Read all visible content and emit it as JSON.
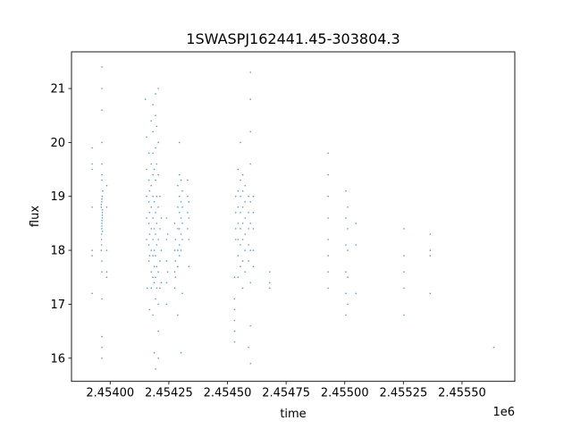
{
  "chart_data": {
    "type": "scatter",
    "title": "1SWASPJ162441.45-303804.3",
    "xlabel": "time",
    "ylabel": "flux",
    "x_offset_label": "1e6",
    "xlim": [
      2453835,
      2455725
    ],
    "ylim": [
      15.57,
      21.68
    ],
    "xticks": [
      2454000,
      2454250,
      2454500,
      2454750,
      2455000,
      2455250,
      2455500
    ],
    "xtick_labels": [
      "2.45400",
      "2.45425",
      "2.45450",
      "2.45475",
      "2.45500",
      "2.45525",
      "2.45550"
    ],
    "yticks": [
      16,
      17,
      18,
      19,
      20,
      21
    ],
    "ytick_labels": [
      "16",
      "17",
      "18",
      "19",
      "20",
      "21"
    ],
    "grid": false,
    "color": "#1f77b4",
    "points": [
      [
        2453923,
        19.9
      ],
      [
        2453923,
        19.6
      ],
      [
        2453923,
        19.5
      ],
      [
        2453923,
        18.0
      ],
      [
        2453923,
        17.2
      ],
      [
        2453923,
        18.8
      ],
      [
        2453923,
        17.9
      ],
      [
        2453962,
        18.0
      ],
      [
        2453963,
        18.2
      ],
      [
        2453964,
        18.4
      ],
      [
        2453965,
        18.5
      ],
      [
        2453966,
        18.6
      ],
      [
        2453967,
        18.7
      ],
      [
        2453962,
        18.8
      ],
      [
        2453964,
        18.9
      ],
      [
        2453966,
        19.0
      ],
      [
        2453968,
        19.1
      ],
      [
        2453963,
        18.3
      ],
      [
        2453965,
        18.55
      ],
      [
        2453967,
        18.75
      ],
      [
        2453962,
        18.85
      ],
      [
        2453964,
        18.45
      ],
      [
        2453966,
        18.65
      ],
      [
        2453965,
        18.95
      ],
      [
        2453963,
        18.1
      ],
      [
        2453967,
        18.35
      ],
      [
        2453965,
        17.6
      ],
      [
        2453965,
        17.1
      ],
      [
        2453965,
        19.6
      ],
      [
        2453965,
        20.0
      ],
      [
        2453965,
        20.6
      ],
      [
        2453965,
        21.0
      ],
      [
        2453965,
        21.4
      ],
      [
        2453965,
        16.4
      ],
      [
        2453965,
        16.2
      ],
      [
        2453965,
        16.0
      ],
      [
        2453965,
        17.8
      ],
      [
        2453965,
        19.4
      ],
      [
        2453965,
        19.3
      ],
      [
        2453985,
        19.2
      ],
      [
        2453985,
        18.8
      ],
      [
        2453985,
        18.0
      ],
      [
        2453985,
        17.6
      ],
      [
        2453985,
        17.5
      ],
      [
        2454150,
        20.8
      ],
      [
        2454155,
        20.1
      ],
      [
        2454155,
        19.5
      ],
      [
        2454155,
        19.0
      ],
      [
        2454155,
        18.6
      ],
      [
        2454155,
        18.2
      ],
      [
        2454158,
        17.3
      ],
      [
        2454165,
        19.8
      ],
      [
        2454165,
        19.3
      ],
      [
        2454165,
        18.9
      ],
      [
        2454165,
        18.5
      ],
      [
        2454165,
        18.1
      ],
      [
        2454165,
        17.8
      ],
      [
        2454168,
        19.1
      ],
      [
        2454168,
        18.7
      ],
      [
        2454168,
        18.3
      ],
      [
        2454168,
        17.9
      ],
      [
        2454168,
        16.9
      ],
      [
        2454175,
        20.4
      ],
      [
        2454175,
        19.6
      ],
      [
        2454175,
        19.2
      ],
      [
        2454175,
        18.8
      ],
      [
        2454175,
        18.4
      ],
      [
        2454175,
        18.0
      ],
      [
        2454175,
        17.6
      ],
      [
        2454175,
        17.3
      ],
      [
        2454182,
        20.7
      ],
      [
        2454182,
        20.2
      ],
      [
        2454182,
        19.8
      ],
      [
        2454182,
        19.4
      ],
      [
        2454182,
        19.0
      ],
      [
        2454182,
        18.6
      ],
      [
        2454182,
        18.2
      ],
      [
        2454182,
        17.9
      ],
      [
        2454182,
        17.5
      ],
      [
        2454182,
        16.8
      ],
      [
        2454188,
        19.5
      ],
      [
        2454188,
        18.9
      ],
      [
        2454188,
        18.4
      ],
      [
        2454188,
        18.0
      ],
      [
        2454188,
        17.7
      ],
      [
        2454188,
        17.4
      ],
      [
        2454188,
        16.1
      ],
      [
        2454193,
        20.9
      ],
      [
        2454193,
        20.5
      ],
      [
        2454193,
        19.9
      ],
      [
        2454193,
        19.3
      ],
      [
        2454193,
        18.7
      ],
      [
        2454193,
        18.3
      ],
      [
        2454193,
        17.9
      ],
      [
        2454193,
        17.5
      ],
      [
        2454193,
        17.1
      ],
      [
        2454193,
        15.8
      ],
      [
        2454198,
        20.3
      ],
      [
        2454198,
        19.6
      ],
      [
        2454198,
        19.0
      ],
      [
        2454198,
        18.5
      ],
      [
        2454198,
        18.1
      ],
      [
        2454198,
        17.7
      ],
      [
        2454198,
        17.3
      ],
      [
        2454205,
        21.0
      ],
      [
        2454205,
        20.0
      ],
      [
        2454205,
        19.4
      ],
      [
        2454205,
        18.8
      ],
      [
        2454205,
        18.2
      ],
      [
        2454205,
        17.6
      ],
      [
        2454205,
        17.0
      ],
      [
        2454205,
        16.5
      ],
      [
        2454205,
        16.0
      ],
      [
        2454212,
        19.0
      ],
      [
        2454212,
        18.4
      ],
      [
        2454212,
        17.8
      ],
      [
        2454212,
        17.3
      ],
      [
        2454218,
        18.6
      ],
      [
        2454218,
        18.0
      ],
      [
        2454218,
        17.4
      ],
      [
        2454240,
        18.6
      ],
      [
        2454240,
        18.2
      ],
      [
        2454240,
        17.8
      ],
      [
        2454240,
        17.4
      ],
      [
        2454240,
        17.0
      ],
      [
        2454245,
        18.3
      ],
      [
        2454245,
        17.6
      ],
      [
        2454275,
        18.5
      ],
      [
        2454275,
        18.0
      ],
      [
        2454275,
        17.6
      ],
      [
        2454275,
        17.3
      ],
      [
        2454278,
        18.2
      ],
      [
        2454278,
        17.8
      ],
      [
        2454278,
        17.5
      ],
      [
        2454288,
        19.2
      ],
      [
        2454288,
        18.8
      ],
      [
        2454288,
        18.4
      ],
      [
        2454288,
        18.0
      ],
      [
        2454288,
        17.7
      ],
      [
        2454288,
        16.8
      ],
      [
        2454295,
        19.4
      ],
      [
        2454295,
        19.0
      ],
      [
        2454295,
        18.7
      ],
      [
        2454295,
        18.4
      ],
      [
        2454295,
        18.1
      ],
      [
        2454295,
        17.9
      ],
      [
        2454295,
        20.0
      ],
      [
        2454302,
        19.3
      ],
      [
        2454302,
        18.9
      ],
      [
        2454302,
        18.6
      ],
      [
        2454302,
        18.3
      ],
      [
        2454302,
        18.0
      ],
      [
        2454302,
        16.1
      ],
      [
        2454308,
        19.1
      ],
      [
        2454308,
        18.8
      ],
      [
        2454308,
        18.5
      ],
      [
        2454308,
        18.2
      ],
      [
        2454308,
        17.2
      ],
      [
        2454330,
        19.3
      ],
      [
        2454330,
        19.0
      ],
      [
        2454330,
        18.7
      ],
      [
        2454330,
        18.4
      ],
      [
        2454335,
        18.9
      ],
      [
        2454335,
        18.6
      ],
      [
        2454335,
        18.2
      ],
      [
        2454335,
        17.7
      ],
      [
        2454530,
        17.1
      ],
      [
        2454530,
        16.9
      ],
      [
        2454530,
        16.7
      ],
      [
        2454530,
        16.5
      ],
      [
        2454530,
        16.3
      ],
      [
        2454530,
        17.5
      ],
      [
        2454535,
        19.0
      ],
      [
        2454535,
        18.7
      ],
      [
        2454535,
        18.4
      ],
      [
        2454535,
        18.2
      ],
      [
        2454545,
        19.5
      ],
      [
        2454545,
        19.1
      ],
      [
        2454545,
        18.8
      ],
      [
        2454545,
        18.5
      ],
      [
        2454545,
        18.2
      ],
      [
        2454545,
        17.9
      ],
      [
        2454545,
        17.5
      ],
      [
        2454555,
        19.3
      ],
      [
        2454555,
        19.0
      ],
      [
        2454555,
        18.7
      ],
      [
        2454555,
        18.4
      ],
      [
        2454555,
        18.1
      ],
      [
        2454555,
        17.7
      ],
      [
        2454555,
        20.0
      ],
      [
        2454565,
        19.4
      ],
      [
        2454565,
        19.1
      ],
      [
        2454565,
        18.8
      ],
      [
        2454565,
        18.5
      ],
      [
        2454565,
        18.2
      ],
      [
        2454565,
        17.8
      ],
      [
        2454565,
        17.3
      ],
      [
        2454575,
        19.2
      ],
      [
        2454575,
        18.9
      ],
      [
        2454575,
        18.6
      ],
      [
        2454575,
        18.3
      ],
      [
        2454575,
        18.0
      ],
      [
        2454575,
        17.6
      ],
      [
        2454590,
        19.0
      ],
      [
        2454590,
        18.7
      ],
      [
        2454590,
        18.4
      ],
      [
        2454590,
        18.1
      ],
      [
        2454590,
        17.8
      ],
      [
        2454590,
        16.2
      ],
      [
        2454598,
        21.3
      ],
      [
        2454598,
        20.8
      ],
      [
        2454598,
        20.2
      ],
      [
        2454598,
        19.6
      ],
      [
        2454598,
        18.9
      ],
      [
        2454598,
        18.5
      ],
      [
        2454598,
        18.0
      ],
      [
        2454598,
        17.4
      ],
      [
        2454598,
        16.6
      ],
      [
        2454598,
        15.9
      ],
      [
        2454610,
        19.0
      ],
      [
        2454610,
        18.7
      ],
      [
        2454610,
        18.4
      ],
      [
        2454610,
        18.0
      ],
      [
        2454610,
        17.7
      ],
      [
        2454680,
        17.6
      ],
      [
        2454680,
        17.4
      ],
      [
        2454680,
        17.3
      ],
      [
        2454929,
        19.8
      ],
      [
        2454929,
        19.4
      ],
      [
        2454929,
        19.0
      ],
      [
        2454929,
        18.6
      ],
      [
        2454929,
        18.2
      ],
      [
        2454929,
        17.9
      ],
      [
        2454929,
        17.6
      ],
      [
        2454929,
        17.3
      ],
      [
        2455005,
        19.1
      ],
      [
        2455005,
        18.6
      ],
      [
        2455005,
        18.1
      ],
      [
        2455005,
        17.6
      ],
      [
        2455005,
        17.2
      ],
      [
        2455005,
        16.8
      ],
      [
        2455013,
        18.8
      ],
      [
        2455013,
        18.4
      ],
      [
        2455013,
        18.0
      ],
      [
        2455013,
        17.5
      ],
      [
        2455013,
        17.0
      ],
      [
        2455048,
        18.5
      ],
      [
        2455048,
        18.1
      ],
      [
        2455048,
        17.2
      ],
      [
        2455253,
        18.4
      ],
      [
        2455253,
        17.9
      ],
      [
        2455253,
        17.6
      ],
      [
        2455253,
        17.3
      ],
      [
        2455253,
        16.8
      ],
      [
        2455364,
        18.3
      ],
      [
        2455364,
        18.0
      ],
      [
        2455364,
        17.9
      ],
      [
        2455364,
        17.2
      ],
      [
        2455635,
        16.2
      ]
    ]
  }
}
